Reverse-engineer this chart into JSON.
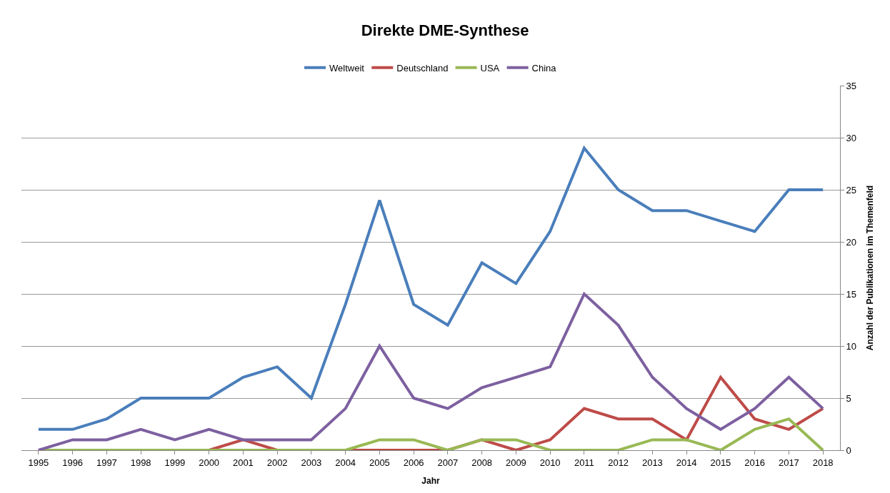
{
  "chart_data": {
    "type": "line",
    "title": "Direkte DME-Synthese",
    "xlabel": "Jahr",
    "ylabel": "Anzahl der Publikationen im Themenfeld",
    "categories": [
      "1995",
      "1996",
      "1997",
      "1998",
      "1999",
      "2000",
      "2001",
      "2002",
      "2003",
      "2004",
      "2005",
      "2006",
      "2007",
      "2008",
      "2009",
      "2010",
      "2011",
      "2012",
      "2013",
      "2014",
      "2015",
      "2016",
      "2017",
      "2018"
    ],
    "series": [
      {
        "name": "Weltweit",
        "color": "#4a7ebb",
        "values": [
          2,
          2,
          3,
          5,
          5,
          5,
          7,
          8,
          5,
          14,
          24,
          14,
          12,
          18,
          16,
          21,
          29,
          25,
          23,
          23,
          22,
          21,
          25,
          25
        ]
      },
      {
        "name": "Deutschland",
        "color": "#be4b48",
        "values": [
          null,
          null,
          null,
          null,
          null,
          0,
          1,
          0,
          0,
          0,
          0,
          0,
          0,
          1,
          0,
          1,
          4,
          3,
          3,
          1,
          7,
          3,
          2,
          4
        ]
      },
      {
        "name": "USA",
        "color": "#98b954",
        "values": [
          0,
          0,
          0,
          0,
          0,
          0,
          0,
          0,
          0,
          0,
          1,
          1,
          0,
          1,
          1,
          0,
          0,
          0,
          1,
          1,
          0,
          2,
          3,
          0
        ]
      },
      {
        "name": "China",
        "color": "#7d60a0",
        "values": [
          0,
          1,
          1,
          2,
          1,
          2,
          1,
          1,
          1,
          4,
          10,
          5,
          4,
          6,
          7,
          8,
          15,
          12,
          7,
          4,
          2,
          4,
          7,
          4
        ]
      }
    ],
    "ylim": [
      0,
      35
    ],
    "yticks": [
      0,
      5,
      10,
      15,
      20,
      25,
      30,
      35
    ],
    "grid": "y",
    "legend": "top",
    "marker": "none",
    "line_style": "solid"
  }
}
